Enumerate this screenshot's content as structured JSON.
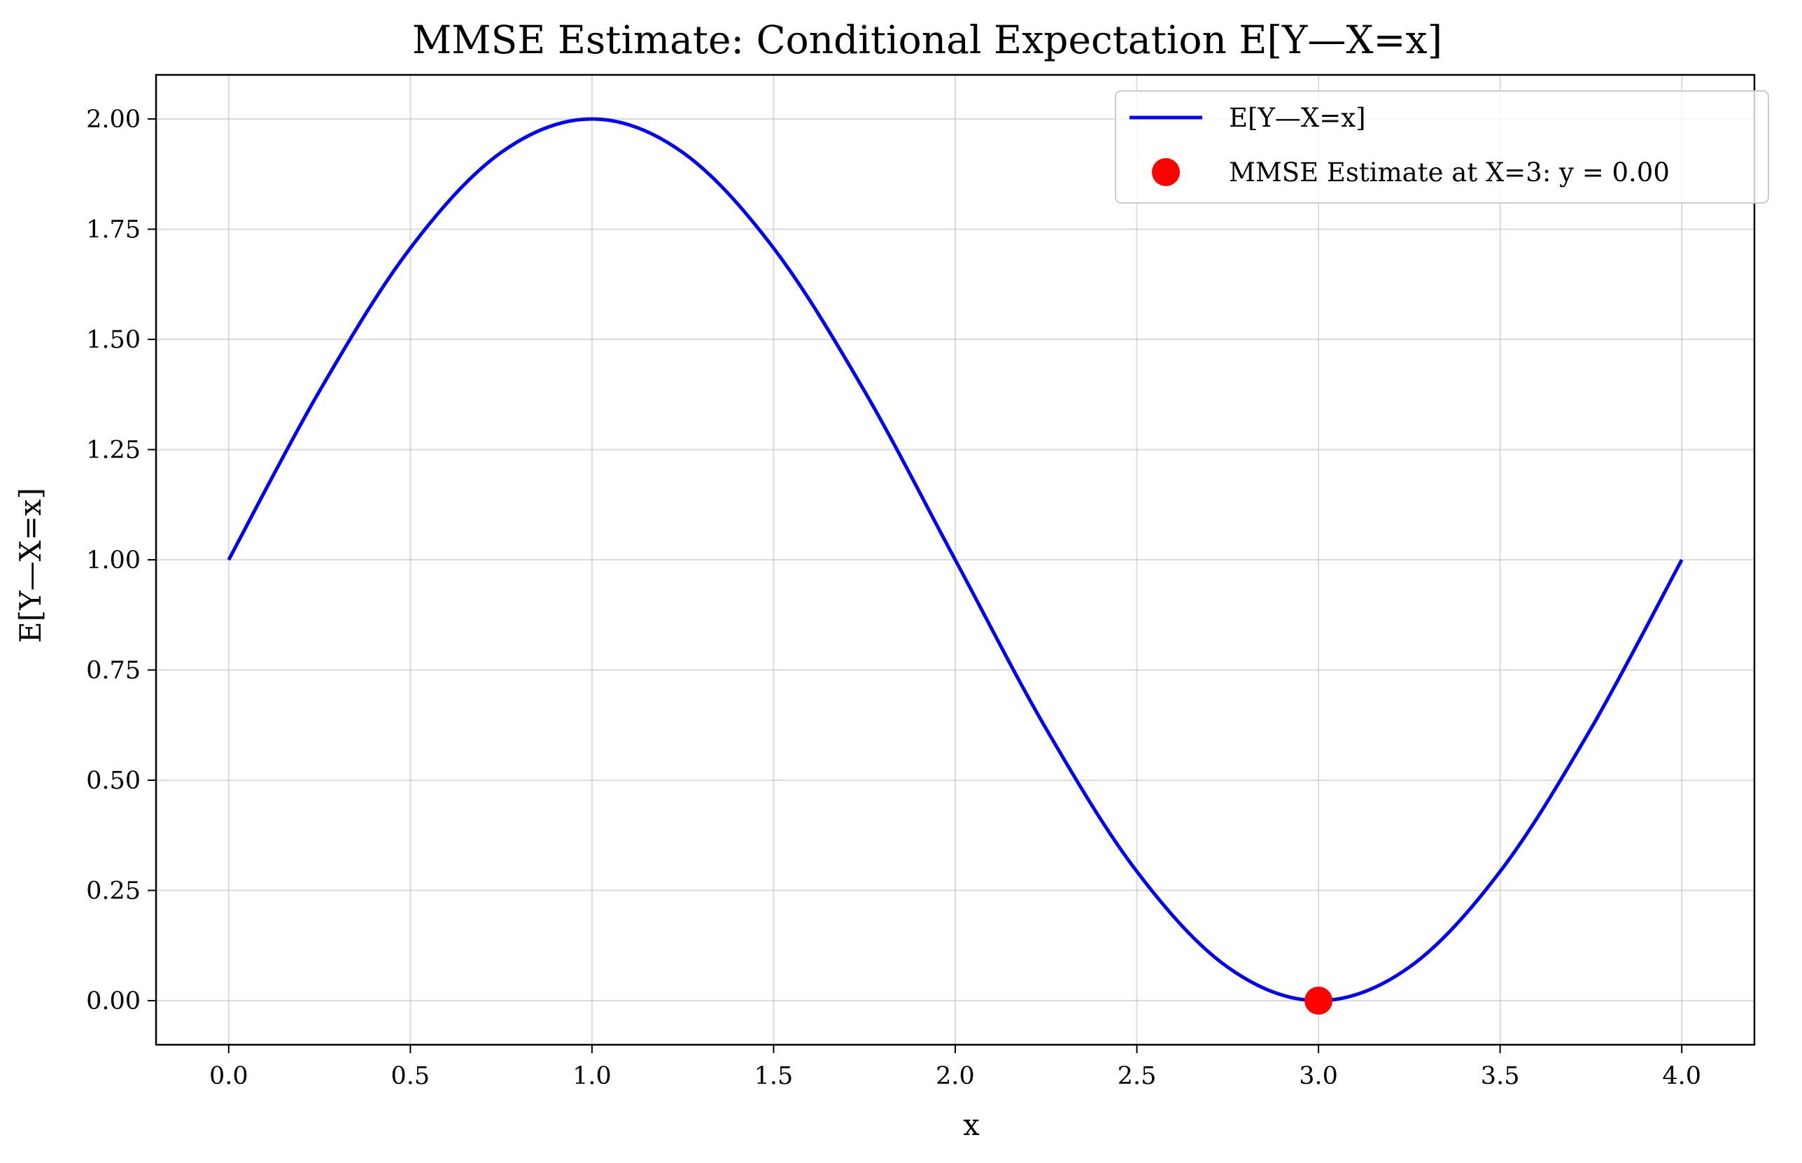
{
  "chart_data": {
    "type": "line",
    "title": "MMSE Estimate: Conditional Expectation E[Y—X=x]",
    "xlabel": "x",
    "ylabel": "E[Y—X=x]",
    "xlim": [
      -0.2,
      4.2
    ],
    "ylim": [
      -0.1,
      2.1
    ],
    "grid": true,
    "legend_placement": "top-right",
    "x_ticks": [
      "0.0",
      "0.5",
      "1.0",
      "1.5",
      "2.0",
      "2.5",
      "3.0",
      "3.5",
      "4.0"
    ],
    "y_ticks": [
      "0.00",
      "0.25",
      "0.50",
      "0.75",
      "1.00",
      "1.25",
      "1.50",
      "1.75",
      "2.00"
    ],
    "series": [
      {
        "name": "E[Y—X=x]",
        "color": "#0000ff",
        "x": [
          0.0,
          0.25,
          0.5,
          0.75,
          1.0,
          1.25,
          1.5,
          1.75,
          2.0,
          2.25,
          2.5,
          2.75,
          3.0,
          3.25,
          3.5,
          3.75,
          4.0
        ],
        "y": [
          1.0,
          1.383,
          1.707,
          1.924,
          2.0,
          1.924,
          1.707,
          1.383,
          1.0,
          0.617,
          0.293,
          0.076,
          0.0,
          0.076,
          0.293,
          0.617,
          1.0
        ]
      }
    ],
    "points": [
      {
        "name": "MMSE Estimate at X=3: y = 0.00",
        "color": "#ff0000",
        "x": 3.0,
        "y": 0.0
      }
    ]
  }
}
